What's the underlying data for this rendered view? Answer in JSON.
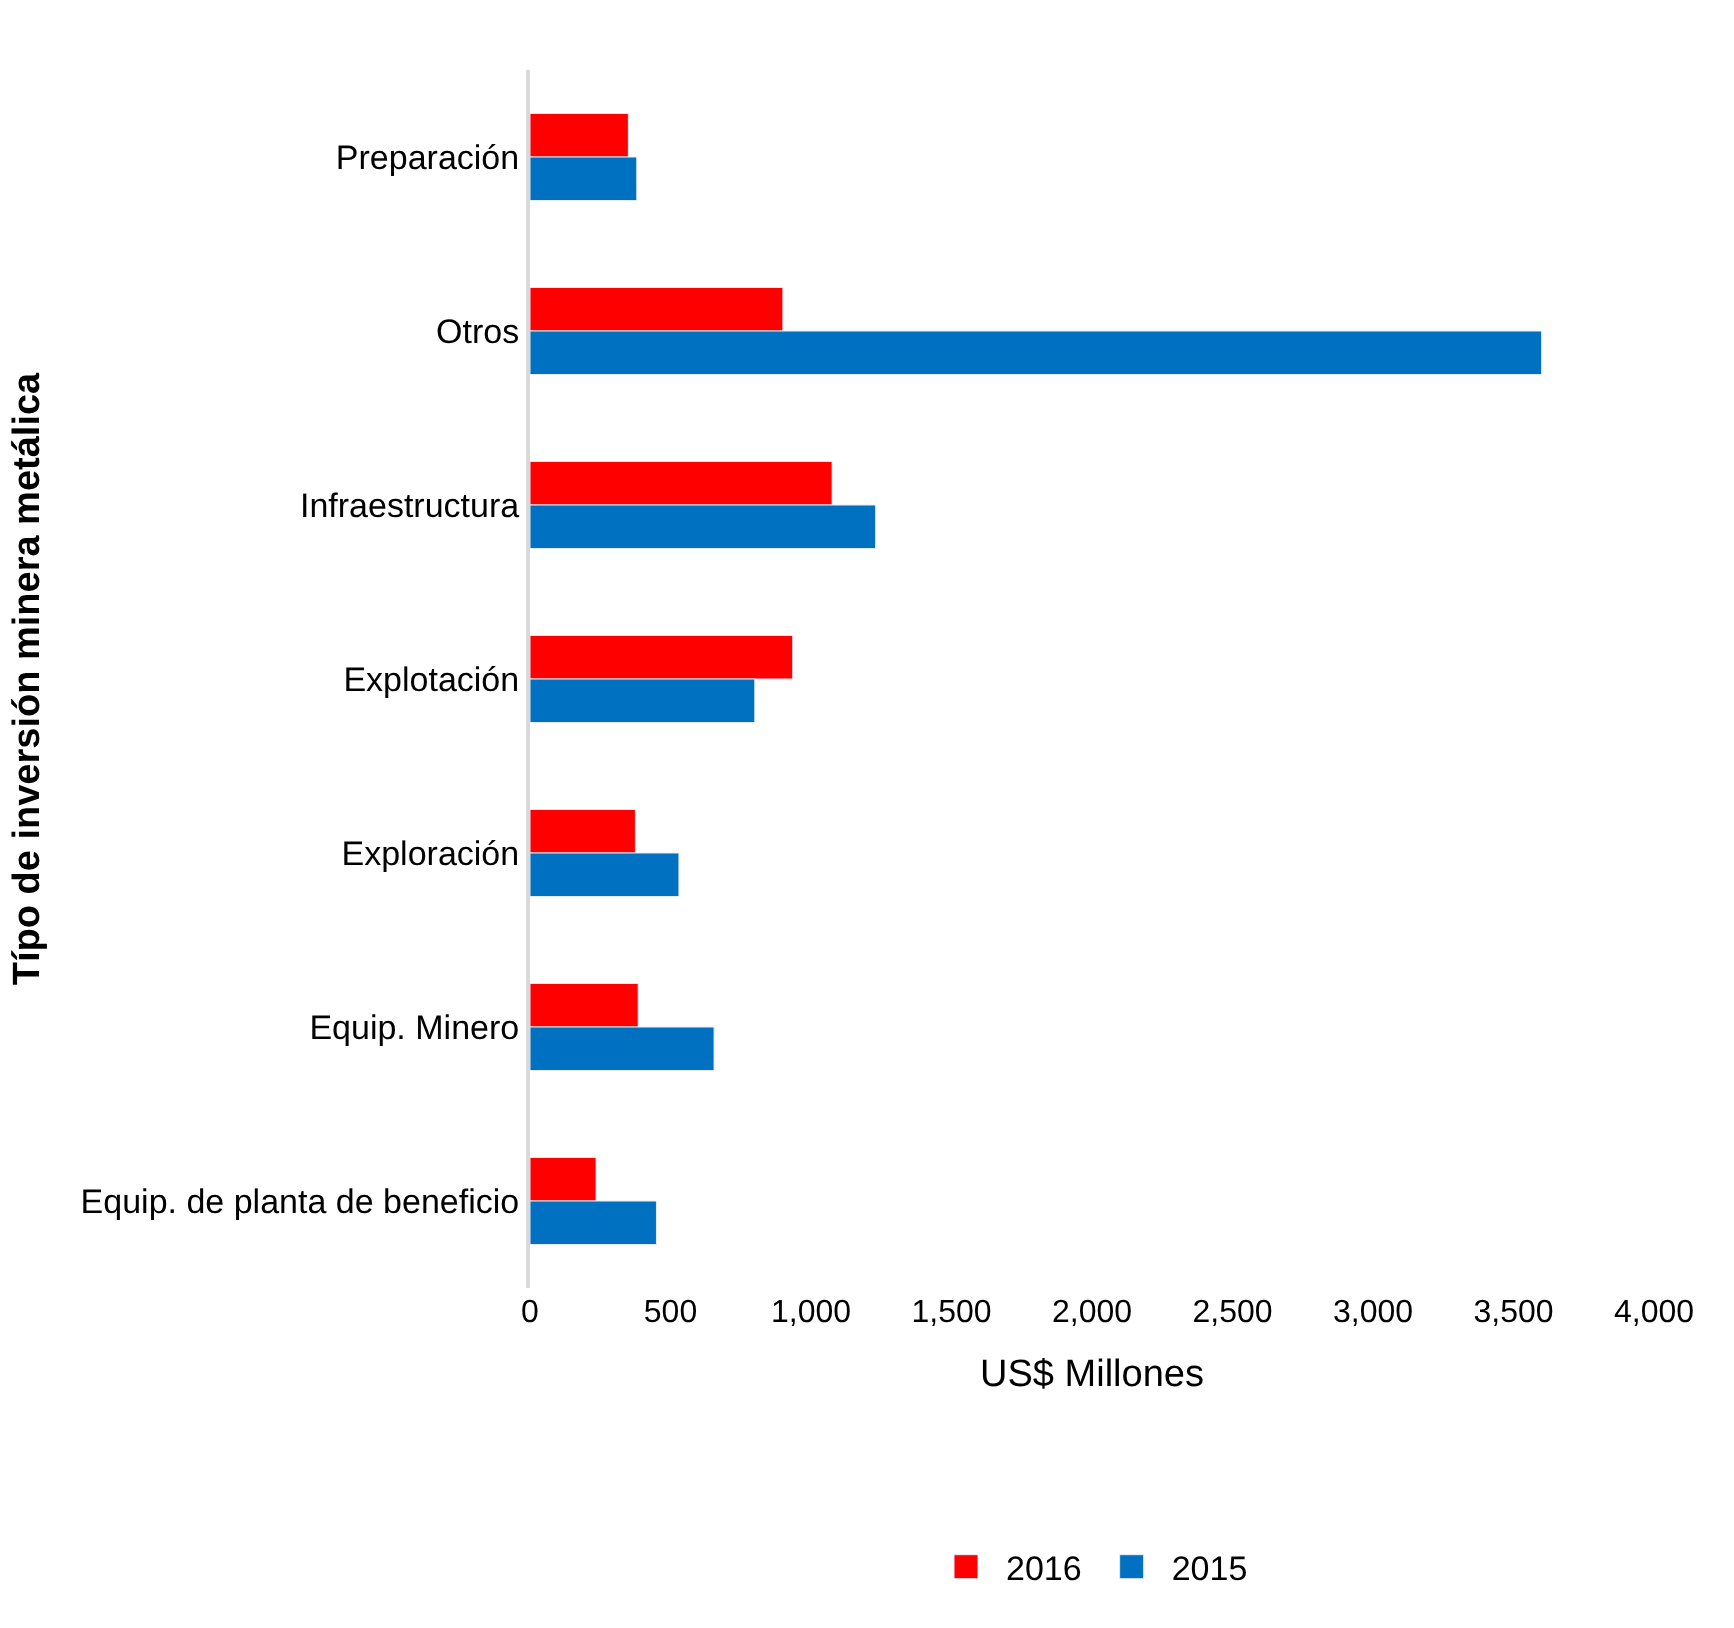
{
  "chart_data": {
    "type": "bar",
    "orientation": "horizontal",
    "xlabel": "US$ Millones",
    "ylabel": "Típo de inversión minera metálica",
    "categories": [
      "Preparación",
      "Otros",
      "Infraestructura",
      "Explotación",
      "Exploración",
      "Equip. Minero",
      "Equip. de planta de beneficio"
    ],
    "series": [
      {
        "name": "2016",
        "color": "#ff0000",
        "values": [
          350,
          900,
          1075,
          935,
          375,
          385,
          235
        ]
      },
      {
        "name": "2015",
        "color": "#0070c0",
        "values": [
          380,
          3600,
          1230,
          800,
          530,
          655,
          450
        ]
      }
    ],
    "xlim": [
      0,
      4000
    ],
    "xticks": [
      0,
      500,
      {
        "value": 1000,
        "label": "1,000"
      },
      {
        "value": 1500,
        "label": "1,500"
      },
      {
        "value": 2000,
        "label": "2,000"
      },
      {
        "value": 2500,
        "label": "2,500"
      },
      {
        "value": 3000,
        "label": "3,000"
      },
      {
        "value": 3500,
        "label": "3,500"
      },
      {
        "value": 4000,
        "label": "4,000"
      }
    ],
    "legend": "bottom"
  }
}
